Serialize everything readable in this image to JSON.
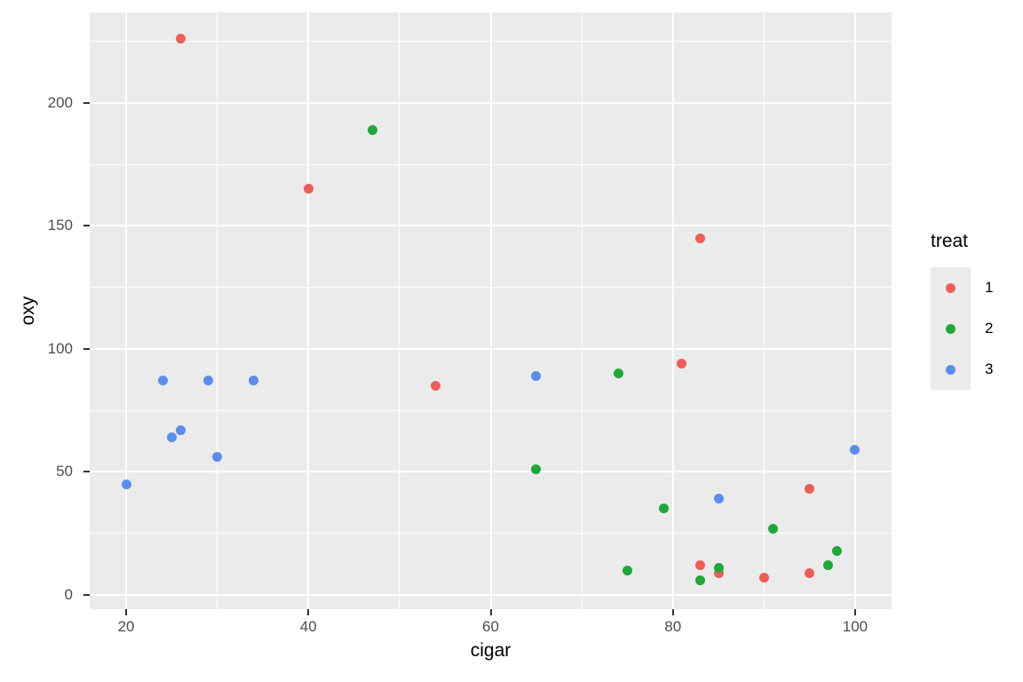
{
  "figure": {
    "bg": "#FFFFFF",
    "panel_bg": "#EBEBEB",
    "grid_color": "#FFFFFF",
    "tick_mark_color": "#333333",
    "tick_label_color": "#4D4D4D",
    "axis_title_color": "#000000"
  },
  "chart_data": {
    "type": "scatter",
    "title": "",
    "xlabel": "cigar",
    "ylabel": "oxy",
    "xlim": [
      16,
      104
    ],
    "ylim": [
      -5.8,
      236.8
    ],
    "x_ticks": [
      20,
      40,
      60,
      80,
      100
    ],
    "y_ticks": [
      0,
      50,
      100,
      150,
      200
    ],
    "x_minor": [
      30,
      50,
      70,
      90
    ],
    "y_minor": [
      25,
      75,
      125,
      175,
      225
    ],
    "grid": true,
    "legend": {
      "title": "treat",
      "position": "right",
      "entries": [
        {
          "label": "1",
          "color": "#EE5D57"
        },
        {
          "label": "2",
          "color": "#1FA839"
        },
        {
          "label": "3",
          "color": "#5B8DEE"
        }
      ]
    },
    "series": [
      {
        "name": "1",
        "color": "#EE5D57",
        "points": [
          [
            26,
            226
          ],
          [
            40,
            165
          ],
          [
            83,
            145
          ],
          [
            81,
            94
          ],
          [
            54,
            85
          ],
          [
            95,
            43
          ],
          [
            83,
            12
          ],
          [
            85,
            9
          ],
          [
            90,
            7
          ],
          [
            95,
            9
          ]
        ]
      },
      {
        "name": "2",
        "color": "#1FA839",
        "points": [
          [
            47,
            189
          ],
          [
            74,
            90
          ],
          [
            65,
            51
          ],
          [
            79,
            35
          ],
          [
            91,
            27
          ],
          [
            98,
            18
          ],
          [
            97,
            12
          ],
          [
            85,
            11
          ],
          [
            75,
            10
          ],
          [
            83,
            6
          ]
        ]
      },
      {
        "name": "3",
        "color": "#5B8DEE",
        "points": [
          [
            24,
            87
          ],
          [
            29,
            87
          ],
          [
            34,
            87
          ],
          [
            65,
            89
          ],
          [
            26,
            67
          ],
          [
            25,
            64
          ],
          [
            30,
            56
          ],
          [
            20,
            45
          ],
          [
            100,
            59
          ],
          [
            85,
            39
          ]
        ]
      }
    ]
  }
}
